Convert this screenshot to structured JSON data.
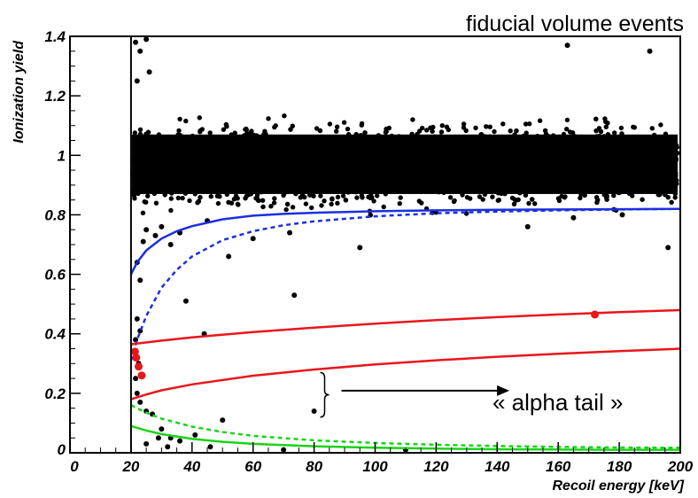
{
  "chart_data": {
    "type": "scatter",
    "title": "fiducial volume events",
    "xlabel": "Recoil energy [keV]",
    "ylabel": "Ionization yield",
    "xlim": [
      0,
      200
    ],
    "ylim": [
      0,
      1.4
    ],
    "xticks": [
      "0",
      "20",
      "40",
      "60",
      "80",
      "100",
      "120",
      "140",
      "160",
      "180",
      "200"
    ],
    "yticks": [
      "0",
      "0.2",
      "0.4",
      "0.6",
      "0.8",
      "1",
      "1.2",
      "1.4"
    ],
    "threshold_keV": 20,
    "colors": {
      "points": "#000000",
      "blue": "#1a2fe0",
      "red": "#e8161b",
      "green": "#18d418"
    },
    "dense_band": {
      "center": 0.97,
      "x_range": [
        20,
        200
      ]
    },
    "scattered_points": [
      [
        21.5,
        1.38
      ],
      [
        22,
        1.25
      ],
      [
        23,
        1.35
      ],
      [
        25,
        1.39
      ],
      [
        26,
        1.28
      ],
      [
        24,
        0.71
      ],
      [
        22,
        0.64
      ],
      [
        23,
        0.58
      ],
      [
        25,
        0.75
      ],
      [
        28,
        0.73
      ],
      [
        30,
        0.76
      ],
      [
        33,
        0.7
      ],
      [
        36,
        0.74
      ],
      [
        45,
        0.78
      ],
      [
        52,
        0.66
      ],
      [
        60,
        0.72
      ],
      [
        72,
        0.74
      ],
      [
        95,
        0.69
      ],
      [
        150,
        0.76
      ],
      [
        181,
        0.8
      ],
      [
        196,
        0.69
      ],
      [
        165,
        0.79
      ],
      [
        190,
        1.35
      ],
      [
        163,
        1.37
      ],
      [
        38,
        0.51
      ],
      [
        44,
        0.4
      ],
      [
        73.5,
        0.53
      ],
      [
        22,
        0.45
      ],
      [
        23,
        0.41
      ],
      [
        21.5,
        0.38
      ],
      [
        22.5,
        0.3
      ],
      [
        21.5,
        0.25
      ],
      [
        22,
        0.2
      ],
      [
        23,
        0.17
      ],
      [
        25,
        0.14
      ],
      [
        27,
        0.13
      ],
      [
        30,
        0.08
      ],
      [
        29,
        0.05
      ],
      [
        33,
        0.05
      ],
      [
        36,
        0.04
      ],
      [
        41,
        0.06
      ],
      [
        50,
        0.11
      ],
      [
        80,
        0.14
      ],
      [
        25,
        0.03
      ],
      [
        32,
        0.02
      ],
      [
        46,
        0.02
      ],
      [
        70,
        0.01
      ],
      [
        110,
        0.01
      ]
    ],
    "alpha_points": [
      [
        21.3,
        0.34
      ],
      [
        21.7,
        0.32
      ],
      [
        22.5,
        0.29
      ],
      [
        23.5,
        0.26
      ],
      [
        172,
        0.465
      ]
    ],
    "series": [
      {
        "color": "blue",
        "style": "solid",
        "x": [
          20,
          22,
          25,
          30,
          35,
          40,
          50,
          60,
          70,
          80,
          100,
          120,
          140,
          160,
          180,
          200
        ],
        "y": [
          0.6,
          0.64,
          0.68,
          0.72,
          0.745,
          0.762,
          0.785,
          0.797,
          0.803,
          0.807,
          0.812,
          0.815,
          0.817,
          0.818,
          0.819,
          0.82
        ]
      },
      {
        "color": "blue",
        "style": "dashed",
        "x": [
          20,
          22,
          25,
          30,
          35,
          40,
          50,
          60,
          70,
          80,
          100,
          120,
          140,
          160,
          180,
          200
        ],
        "y": [
          0.31,
          0.38,
          0.46,
          0.555,
          0.615,
          0.66,
          0.715,
          0.745,
          0.765,
          0.778,
          0.795,
          0.805,
          0.811,
          0.815,
          0.818,
          0.82
        ]
      },
      {
        "color": "red",
        "style": "solid",
        "x": [
          20,
          30,
          40,
          60,
          80,
          100,
          120,
          140,
          160,
          180,
          200
        ],
        "y": [
          0.365,
          0.377,
          0.388,
          0.406,
          0.421,
          0.434,
          0.446,
          0.456,
          0.465,
          0.473,
          0.48
        ]
      },
      {
        "color": "red",
        "style": "solid",
        "x": [
          20,
          25,
          30,
          40,
          60,
          80,
          100,
          120,
          140,
          160,
          180,
          200
        ],
        "y": [
          0.18,
          0.196,
          0.21,
          0.23,
          0.259,
          0.28,
          0.297,
          0.311,
          0.323,
          0.333,
          0.342,
          0.35
        ]
      },
      {
        "color": "green",
        "style": "dashed",
        "x": [
          20,
          25,
          30,
          40,
          50,
          60,
          80,
          100,
          120,
          140,
          160,
          180,
          200
        ],
        "y": [
          0.16,
          0.135,
          0.115,
          0.088,
          0.07,
          0.057,
          0.042,
          0.033,
          0.027,
          0.023,
          0.02,
          0.018,
          0.017
        ]
      },
      {
        "color": "green",
        "style": "solid",
        "x": [
          20,
          25,
          30,
          40,
          50,
          60,
          80,
          100,
          120,
          140,
          160,
          180,
          200
        ],
        "y": [
          0.09,
          0.075,
          0.063,
          0.047,
          0.037,
          0.03,
          0.022,
          0.017,
          0.014,
          0.012,
          0.011,
          0.01,
          0.01
        ]
      }
    ],
    "annotation": {
      "text": "« alpha tail »",
      "bracket_y": [
        0.12,
        0.27
      ],
      "bracket_x": 82,
      "arrow_from_x": 89,
      "arrow_to_x": 144,
      "arrow_y": 0.2
    }
  }
}
